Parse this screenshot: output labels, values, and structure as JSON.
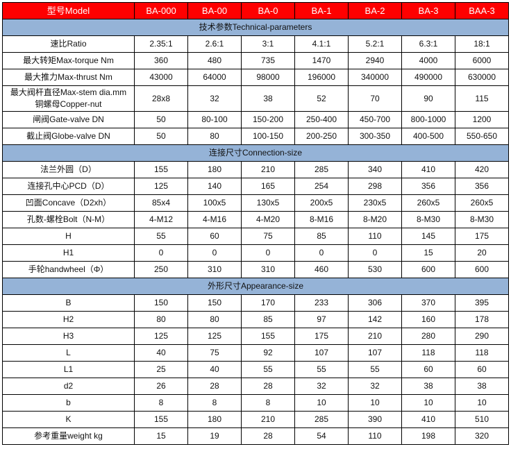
{
  "colors": {
    "header_bg": "#ff0000",
    "section_bg": "#95b3d7"
  },
  "header": {
    "label": "型号Model",
    "models": [
      "BA-000",
      "BA-00",
      "BA-0",
      "BA-1",
      "BA-2",
      "BA-3",
      "BAA-3"
    ]
  },
  "sections": [
    {
      "title": "技术参数Technical-parameters",
      "rows": [
        {
          "label": "速比Ratio",
          "values": [
            "2.35:1",
            "2.6:1",
            "3:1",
            "4.1:1",
            "5.2:1",
            "6.3:1",
            "18:1"
          ]
        },
        {
          "label": "最大转矩Max-torque Nm",
          "values": [
            "360",
            "480",
            "735",
            "1470",
            "2940",
            "4000",
            "6000"
          ]
        },
        {
          "label": "最大推力Max-thrust Nm",
          "values": [
            "43000",
            "64000",
            "98000",
            "196000",
            "340000",
            "490000",
            "630000"
          ]
        },
        {
          "label": "最大阀杆直径Max-stem dia.mm",
          "label2": "铜螺母Copper-nut",
          "values": [
            "28x8",
            "32",
            "38",
            "52",
            "70",
            "90",
            "115"
          ]
        },
        {
          "label": "闸阀Gate-valve DN",
          "values": [
            "50",
            "80-100",
            "150-200",
            "250-400",
            "450-700",
            "800-1000",
            "1200"
          ]
        },
        {
          "label": "截止阀Globe-valve DN",
          "values": [
            "50",
            "80",
            "100-150",
            "200-250",
            "300-350",
            "400-500",
            "550-650"
          ]
        }
      ]
    },
    {
      "title": "连接尺寸Connection-size",
      "rows": [
        {
          "label": "法兰外圆（D）",
          "values": [
            "155",
            "180",
            "210",
            "285",
            "340",
            "410",
            "420"
          ]
        },
        {
          "label": "连接孔中心PCD（D）",
          "values": [
            "125",
            "140",
            "165",
            "254",
            "298",
            "356",
            "356"
          ]
        },
        {
          "label": "凹面Concave（D2xh）",
          "values": [
            "85x4",
            "100x5",
            "130x5",
            "200x5",
            "230x5",
            "260x5",
            "260x5"
          ]
        },
        {
          "label": "孔数-螺栓Bolt（N-M）",
          "values": [
            "4-M12",
            "4-M16",
            "4-M20",
            "8-M16",
            "8-M20",
            "8-M30",
            "8-M30"
          ]
        },
        {
          "label": "H",
          "values": [
            "55",
            "60",
            "75",
            "85",
            "110",
            "145",
            "175"
          ]
        },
        {
          "label": "H1",
          "values": [
            "0",
            "0",
            "0",
            "0",
            "0",
            "15",
            "20"
          ]
        },
        {
          "label": "手轮handwheel（Φ）",
          "values": [
            "250",
            "310",
            "310",
            "460",
            "530",
            "600",
            "600"
          ]
        }
      ]
    },
    {
      "title": "外形尺寸Appearance-size",
      "rows": [
        {
          "label": "B",
          "values": [
            "150",
            "150",
            "170",
            "233",
            "306",
            "370",
            "395"
          ]
        },
        {
          "label": "H2",
          "values": [
            "80",
            "80",
            "85",
            "97",
            "142",
            "160",
            "178"
          ]
        },
        {
          "label": "H3",
          "values": [
            "125",
            "125",
            "155",
            "175",
            "210",
            "280",
            "290"
          ]
        },
        {
          "label": "L",
          "values": [
            "40",
            "75",
            "92",
            "107",
            "107",
            "118",
            "118"
          ]
        },
        {
          "label": "L1",
          "values": [
            "25",
            "40",
            "55",
            "55",
            "55",
            "60",
            "60"
          ]
        },
        {
          "label": "d2",
          "values": [
            "26",
            "28",
            "28",
            "32",
            "32",
            "38",
            "38"
          ]
        },
        {
          "label": "b",
          "values": [
            "8",
            "8",
            "8",
            "10",
            "10",
            "10",
            "10"
          ]
        },
        {
          "label": "K",
          "values": [
            "155",
            "180",
            "210",
            "285",
            "390",
            "410",
            "510"
          ]
        },
        {
          "label": "参考重量weight kg",
          "values": [
            "15",
            "19",
            "28",
            "54",
            "110",
            "198",
            "320"
          ]
        }
      ]
    }
  ]
}
